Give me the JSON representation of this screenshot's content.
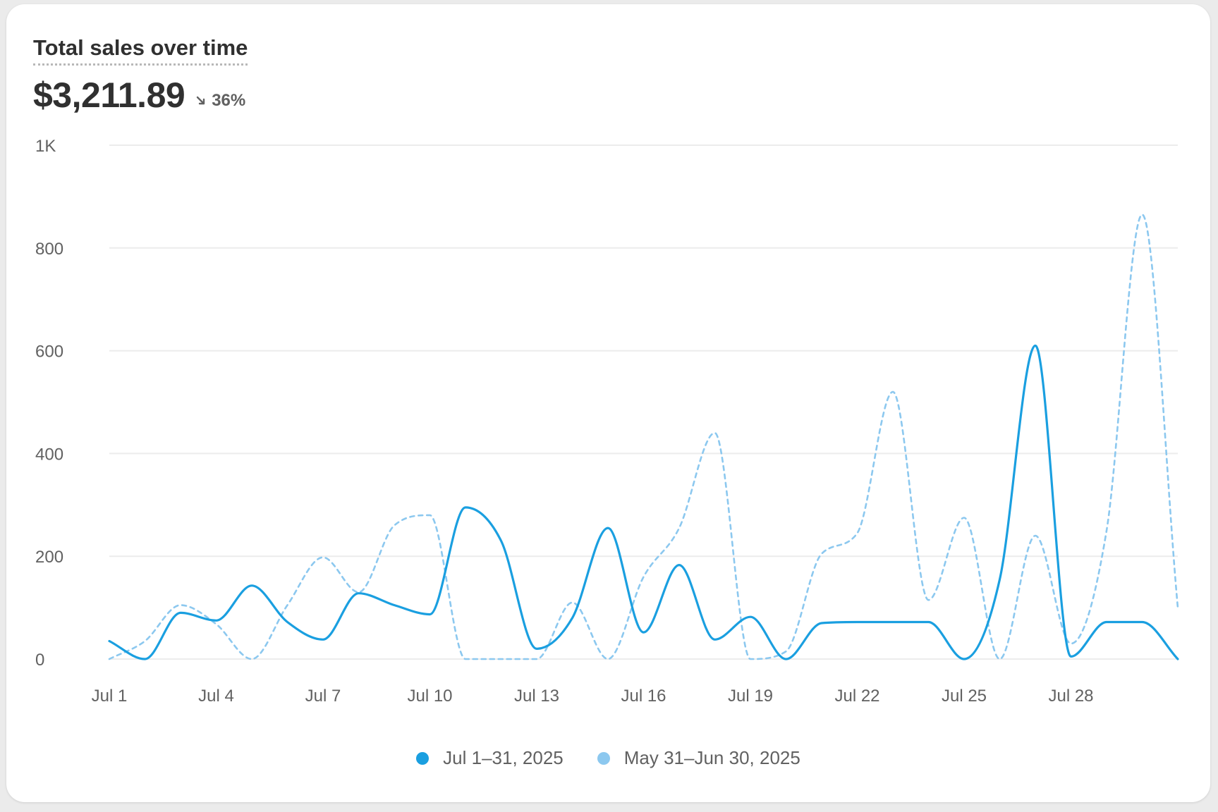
{
  "card": {
    "title": "Total sales over time",
    "value": "$3,211.89",
    "change": "36%",
    "change_direction": "down",
    "change_icon": "arrow-down-right-icon"
  },
  "colors": {
    "current": "#1a9fe0",
    "previous": "#8cc8ef",
    "grid": "#ececec",
    "axis_text": "#616161"
  },
  "chart_data": {
    "type": "line",
    "title": "Total sales over time",
    "ylim": [
      0,
      1000
    ],
    "y_ticks": [
      0,
      200,
      400,
      600,
      800,
      1000
    ],
    "y_tick_labels": [
      "0",
      "200",
      "400",
      "600",
      "800",
      "1K"
    ],
    "x_ticks": [
      "Jul 1",
      "Jul 4",
      "Jul 7",
      "Jul 10",
      "Jul 13",
      "Jul 16",
      "Jul 19",
      "Jul 22",
      "Jul 25",
      "Jul 28"
    ],
    "categories": [
      "Jul 1",
      "Jul 2",
      "Jul 3",
      "Jul 4",
      "Jul 5",
      "Jul 6",
      "Jul 7",
      "Jul 8",
      "Jul 9",
      "Jul 10",
      "Jul 11",
      "Jul 12",
      "Jul 13",
      "Jul 14",
      "Jul 15",
      "Jul 16",
      "Jul 17",
      "Jul 18",
      "Jul 19",
      "Jul 20",
      "Jul 21",
      "Jul 22",
      "Jul 23",
      "Jul 24",
      "Jul 25",
      "Jul 26",
      "Jul 27",
      "Jul 28",
      "Jul 29",
      "Jul 30",
      "Jul 31"
    ],
    "grid": true,
    "legend_position": "bottom-center",
    "series": [
      {
        "name": "Jul 1–31, 2025",
        "style": "solid",
        "values": [
          35,
          0,
          90,
          75,
          143,
          72,
          38,
          128,
          105,
          87,
          295,
          230,
          20,
          80,
          255,
          52,
          183,
          38,
          82,
          0,
          70,
          72,
          72,
          72,
          0,
          155,
          610,
          5,
          72,
          72,
          0
        ]
      },
      {
        "name": "May 31–Jun 30, 2025",
        "style": "dashed",
        "values": [
          0,
          35,
          105,
          68,
          0,
          105,
          198,
          130,
          260,
          280,
          0,
          0,
          0,
          110,
          0,
          160,
          255,
          440,
          0,
          15,
          205,
          245,
          520,
          115,
          275,
          0,
          240,
          30,
          250,
          865,
          100
        ]
      }
    ]
  }
}
